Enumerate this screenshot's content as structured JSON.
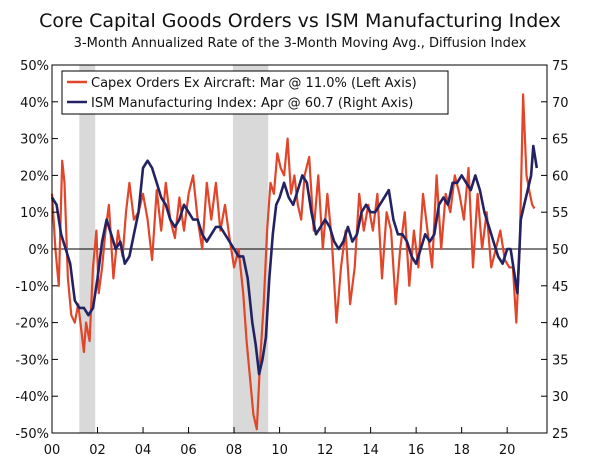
{
  "chart_data": {
    "type": "line",
    "title": "Core Capital Goods Orders vs ISM Manufacturing Index",
    "subtitle": "3-Month Annualized Rate of the 3-Month Moving Avg., Diffusion Index",
    "x_range": [
      2000,
      2021.75
    ],
    "x_ticks": [
      {
        "value": 2000,
        "label": "00"
      },
      {
        "value": 2002,
        "label": "02"
      },
      {
        "value": 2004,
        "label": "04"
      },
      {
        "value": 2006,
        "label": "06"
      },
      {
        "value": 2008,
        "label": "08"
      },
      {
        "value": 2010,
        "label": "10"
      },
      {
        "value": 2012,
        "label": "12"
      },
      {
        "value": 2014,
        "label": "14"
      },
      {
        "value": 2016,
        "label": "16"
      },
      {
        "value": 2018,
        "label": "18"
      },
      {
        "value": 2020,
        "label": "20"
      }
    ],
    "y_left": {
      "range": [
        -50,
        50
      ],
      "ticks": [
        50,
        40,
        30,
        20,
        10,
        0,
        -10,
        -20,
        -30,
        -40,
        -50
      ],
      "labels": [
        "50%",
        "40%",
        "30%",
        "20%",
        "10%",
        "0%",
        "-10%",
        "-20%",
        "-30%",
        "-40%",
        "-50%"
      ]
    },
    "y_right": {
      "range": [
        25,
        75
      ],
      "ticks": [
        75,
        70,
        65,
        60,
        55,
        50,
        45,
        40,
        35,
        30,
        25
      ],
      "labels": [
        "75",
        "70",
        "65",
        "60",
        "55",
        "50",
        "45",
        "40",
        "35",
        "30",
        "25"
      ]
    },
    "recessions": [
      [
        2001.2,
        2001.9
      ],
      [
        2007.95,
        2009.5
      ]
    ],
    "legend_position": "top-left",
    "colors": {
      "capex": "#e2462a",
      "ism": "#232364",
      "recession": "#d9d9d9",
      "zero_line": "#000000"
    },
    "series": [
      {
        "name": "Capex Orders Ex Aircraft: Mar @ 11.0% (Left Axis)",
        "axis": "left",
        "x": [
          2000.0,
          2000.15,
          2000.3,
          2000.45,
          2000.55,
          2000.7,
          2000.85,
          2001.0,
          2001.15,
          2001.25,
          2001.4,
          2001.5,
          2001.65,
          2001.8,
          2001.95,
          2002.05,
          2002.2,
          2002.35,
          2002.5,
          2002.7,
          2002.9,
          2003.1,
          2003.25,
          2003.4,
          2003.6,
          2003.8,
          2004.0,
          2004.2,
          2004.4,
          2004.6,
          2004.8,
          2005.0,
          2005.2,
          2005.4,
          2005.6,
          2005.8,
          2006.0,
          2006.2,
          2006.4,
          2006.6,
          2006.8,
          2007.0,
          2007.2,
          2007.4,
          2007.6,
          2007.8,
          2008.0,
          2008.2,
          2008.4,
          2008.55,
          2008.7,
          2008.85,
          2009.0,
          2009.15,
          2009.3,
          2009.45,
          2009.6,
          2009.75,
          2009.9,
          2010.05,
          2010.2,
          2010.35,
          2010.5,
          2010.65,
          2010.8,
          2010.95,
          2011.1,
          2011.3,
          2011.5,
          2011.7,
          2011.9,
          2012.1,
          2012.3,
          2012.5,
          2012.7,
          2012.9,
          2013.1,
          2013.3,
          2013.5,
          2013.7,
          2013.9,
          2014.1,
          2014.3,
          2014.5,
          2014.7,
          2014.9,
          2015.1,
          2015.3,
          2015.5,
          2015.7,
          2015.9,
          2016.1,
          2016.3,
          2016.5,
          2016.7,
          2016.9,
          2017.1,
          2017.3,
          2017.5,
          2017.7,
          2017.9,
          2018.1,
          2018.3,
          2018.5,
          2018.7,
          2018.9,
          2019.1,
          2019.3,
          2019.5,
          2019.7,
          2019.9,
          2020.1,
          2020.25,
          2020.4,
          2020.55,
          2020.7,
          2020.85,
          2021.0,
          2021.1,
          2021.2
        ],
        "y": [
          15,
          0,
          -10,
          24,
          18,
          -8,
          -18,
          -20,
          -15,
          -20,
          -28,
          -20,
          -25,
          -5,
          5,
          -12,
          -5,
          5,
          12,
          -8,
          5,
          -2,
          10,
          18,
          8,
          10,
          15,
          8,
          -3,
          16,
          5,
          18,
          8,
          3,
          14,
          5,
          15,
          20,
          8,
          0,
          18,
          8,
          18,
          5,
          12,
          3,
          -5,
          0,
          -12,
          -25,
          -35,
          -45,
          -49,
          -30,
          -15,
          5,
          18,
          15,
          26,
          22,
          20,
          30,
          15,
          20,
          12,
          8,
          20,
          25,
          5,
          20,
          0,
          15,
          2,
          -20,
          -5,
          5,
          -15,
          -5,
          15,
          5,
          12,
          5,
          15,
          -8,
          10,
          5,
          -15,
          0,
          10,
          -10,
          5,
          -5,
          15,
          5,
          -5,
          20,
          0,
          15,
          10,
          20,
          15,
          8,
          22,
          -5,
          15,
          0,
          10,
          -5,
          0,
          5,
          -3,
          -5,
          -5,
          -20,
          0,
          42,
          20,
          15,
          12,
          11
        ]
      },
      {
        "name": "ISM Manufacturing Index: Apr @ 60.7 (Right Axis)",
        "axis": "right",
        "x": [
          2000.0,
          2000.2,
          2000.4,
          2000.6,
          2000.8,
          2001.0,
          2001.2,
          2001.4,
          2001.6,
          2001.8,
          2002.0,
          2002.2,
          2002.4,
          2002.6,
          2002.8,
          2003.0,
          2003.2,
          2003.4,
          2003.6,
          2003.8,
          2004.0,
          2004.2,
          2004.4,
          2004.6,
          2004.8,
          2005.0,
          2005.2,
          2005.4,
          2005.6,
          2005.8,
          2006.0,
          2006.2,
          2006.4,
          2006.6,
          2006.8,
          2007.0,
          2007.2,
          2007.4,
          2007.6,
          2007.8,
          2008.0,
          2008.2,
          2008.4,
          2008.6,
          2008.8,
          2008.95,
          2009.1,
          2009.25,
          2009.4,
          2009.55,
          2009.7,
          2009.85,
          2010.0,
          2010.2,
          2010.4,
          2010.6,
          2010.8,
          2011.0,
          2011.2,
          2011.4,
          2011.6,
          2011.8,
          2012.0,
          2012.2,
          2012.4,
          2012.6,
          2012.8,
          2013.0,
          2013.2,
          2013.4,
          2013.6,
          2013.8,
          2014.0,
          2014.2,
          2014.4,
          2014.6,
          2014.8,
          2015.0,
          2015.2,
          2015.4,
          2015.6,
          2015.8,
          2016.0,
          2016.2,
          2016.4,
          2016.6,
          2016.8,
          2017.0,
          2017.2,
          2017.4,
          2017.6,
          2017.8,
          2018.0,
          2018.2,
          2018.4,
          2018.6,
          2018.8,
          2019.0,
          2019.2,
          2019.4,
          2019.6,
          2019.8,
          2020.0,
          2020.15,
          2020.3,
          2020.45,
          2020.6,
          2020.75,
          2020.9,
          2021.05,
          2021.15,
          2021.3
        ],
        "y": [
          57,
          56,
          52,
          50,
          48,
          43,
          42,
          42,
          41,
          42,
          46,
          51,
          54,
          52,
          50,
          51,
          48,
          49,
          52,
          55,
          61,
          62,
          61,
          59,
          57,
          56,
          54,
          53,
          54,
          56,
          55,
          54,
          54,
          52,
          51,
          52,
          53,
          53,
          52,
          51,
          50,
          49,
          49,
          46,
          40,
          37,
          33,
          35,
          38,
          46,
          52,
          56,
          57,
          59,
          57,
          56,
          58,
          60,
          59,
          55,
          52,
          53,
          54,
          53,
          51,
          50,
          51,
          53,
          51,
          52,
          55,
          56,
          55,
          55,
          56,
          57,
          58,
          54,
          52,
          52,
          51,
          49,
          48,
          50,
          52,
          51,
          52,
          56,
          57,
          56,
          59,
          59,
          60,
          59,
          58,
          60,
          58,
          55,
          53,
          51,
          49,
          48,
          50,
          50,
          47,
          44,
          54,
          56,
          58,
          60,
          64,
          61
        ]
      }
    ]
  }
}
